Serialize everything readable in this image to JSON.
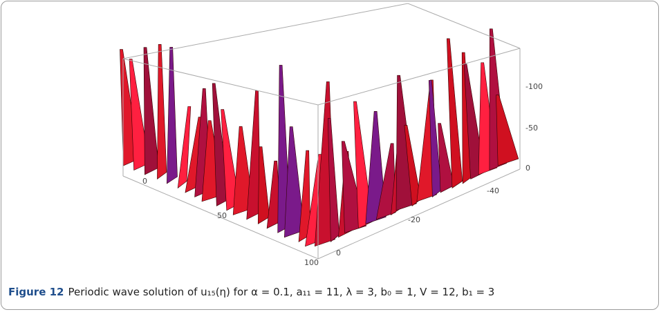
{
  "figure": {
    "x_ticks": [
      "0",
      "50",
      "100"
    ],
    "y_ticks": [
      "0",
      "-20",
      "-40"
    ],
    "z_ticks": [
      "0",
      "-50",
      "-100"
    ],
    "caption": {
      "label": "Figure 12",
      "text": "Periodic wave solution of u₁₅(η) for α = 0.1, a₁₁ = 11, λ = 3, b₀ = 1, V = 12, b₁ = 3"
    }
  }
}
